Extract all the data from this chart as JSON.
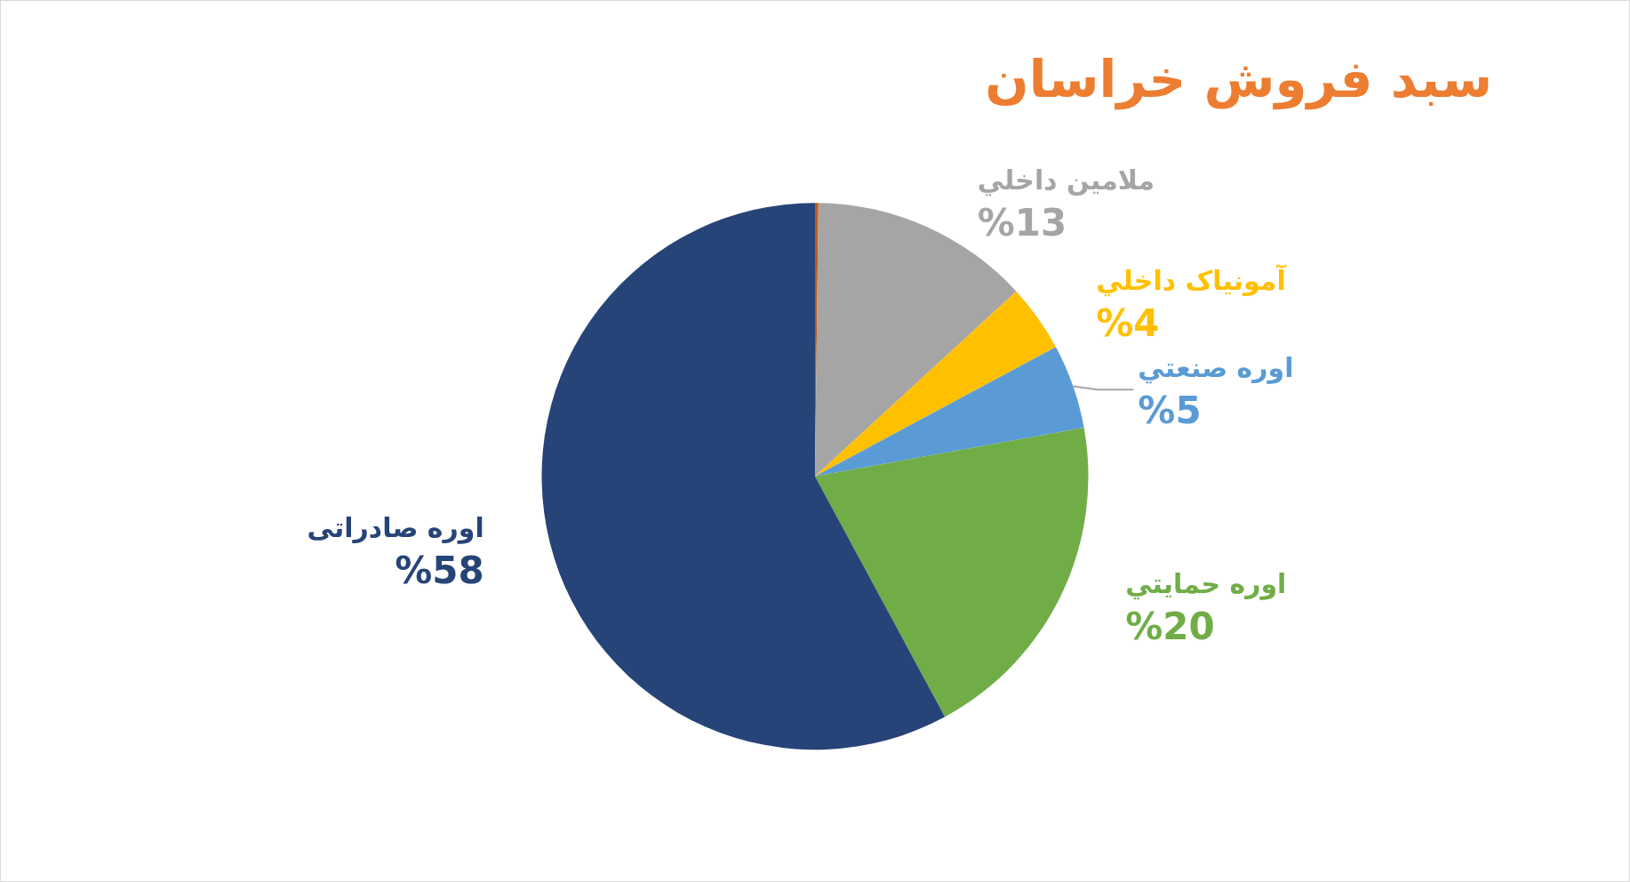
{
  "chart_data": {
    "type": "pie",
    "title": "سبد فروش خراسان",
    "categories": [
      null,
      "ملامین داخلي",
      "آمونیاک داخلي",
      "اوره صنعتي",
      "اوره حمايتي",
      "اوره صادراتی"
    ],
    "values": [
      0.2,
      13,
      4,
      5,
      20,
      58
    ],
    "colors": [
      "#c55a11",
      "#a5a5a5",
      "#ffc000",
      "#5b9bd5",
      "#70ad47",
      "#264478"
    ],
    "value_labels": [
      null,
      "%13",
      "%4",
      "%5",
      "%20",
      "%58"
    ],
    "legend": false
  }
}
